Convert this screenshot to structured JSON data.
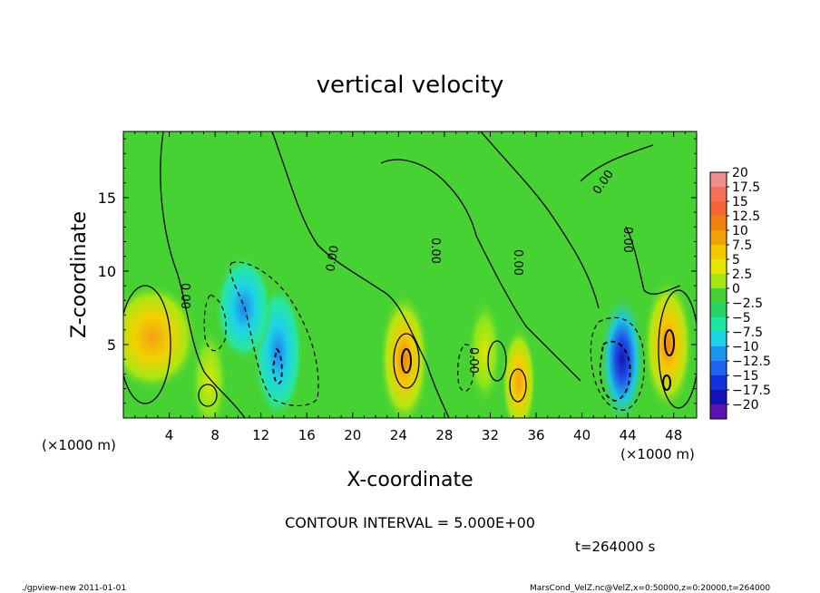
{
  "chart_data": {
    "type": "heatmap",
    "title": "vertical velocity",
    "xlabel": "X-coordinate",
    "ylabel": "Z-coordinate",
    "x_unit_left": "(×1000 m)",
    "x_unit_right": "(×1000 m)",
    "xlim": [
      0,
      50
    ],
    "ylim": [
      0,
      19.5
    ],
    "x_ticks": [
      4,
      8,
      12,
      16,
      20,
      24,
      28,
      32,
      36,
      40,
      44,
      48
    ],
    "y_ticks": [
      5,
      10,
      15
    ],
    "colorbar": {
      "levels": [
        20,
        17.5,
        15,
        12.5,
        10,
        7.5,
        5,
        2.5,
        0,
        -2.5,
        -5,
        -7.5,
        -10,
        -12.5,
        -15,
        -17.5,
        -20
      ],
      "labels": [
        "20",
        "17.5",
        "15",
        "12.5",
        "10",
        "7.5",
        "5",
        "2.5",
        "0",
        "−2.5",
        "−5",
        "−7.5",
        "−10",
        "−12.5",
        "−15",
        "−17.5",
        "−20"
      ],
      "colors": [
        "#f08c8c",
        "#f4705a",
        "#f46432",
        "#f08214",
        "#f4a00a",
        "#f4c800",
        "#e6e600",
        "#a8e614",
        "#46d232",
        "#28d264",
        "#1ee6a0",
        "#1ed2e6",
        "#1e96f0",
        "#1e64f0",
        "#1432dc",
        "#1414b4",
        "#5a14b4"
      ]
    },
    "contour_labels": [
      "0.00",
      "0.00",
      "0.00",
      "0.00",
      "0.00",
      "0.00",
      "0.00"
    ],
    "contour_interval_text": "CONTOUR INTERVAL = 5.000E+00",
    "time_text": "t=264000 s",
    "cells": [
      {
        "x": 2.5,
        "z": 5.5,
        "w": 4,
        "v": 7.5
      },
      {
        "x": 7.5,
        "z": 2.5,
        "w": 1.6,
        "v": 5
      },
      {
        "x": 13.5,
        "z": 4.5,
        "w": 2.2,
        "v": -10
      },
      {
        "x": 10.5,
        "z": 7.5,
        "w": 2.5,
        "v": -5
      },
      {
        "x": 24.5,
        "z": 4.0,
        "w": 2.2,
        "v": 10
      },
      {
        "x": 31.5,
        "z": 4.5,
        "w": 1.5,
        "v": 5
      },
      {
        "x": 34.5,
        "z": 2.5,
        "w": 1.5,
        "v": 7.5
      },
      {
        "x": 43.5,
        "z": 4.0,
        "w": 2.0,
        "v": -15
      },
      {
        "x": 47.5,
        "z": 5.0,
        "w": 2.2,
        "v": 10
      }
    ]
  },
  "footer": {
    "left": "./gpview-new   2011-01-01",
    "right": "MarsCond_VelZ.nc@VelZ,x=0:50000,z=0:20000,t=264000"
  }
}
